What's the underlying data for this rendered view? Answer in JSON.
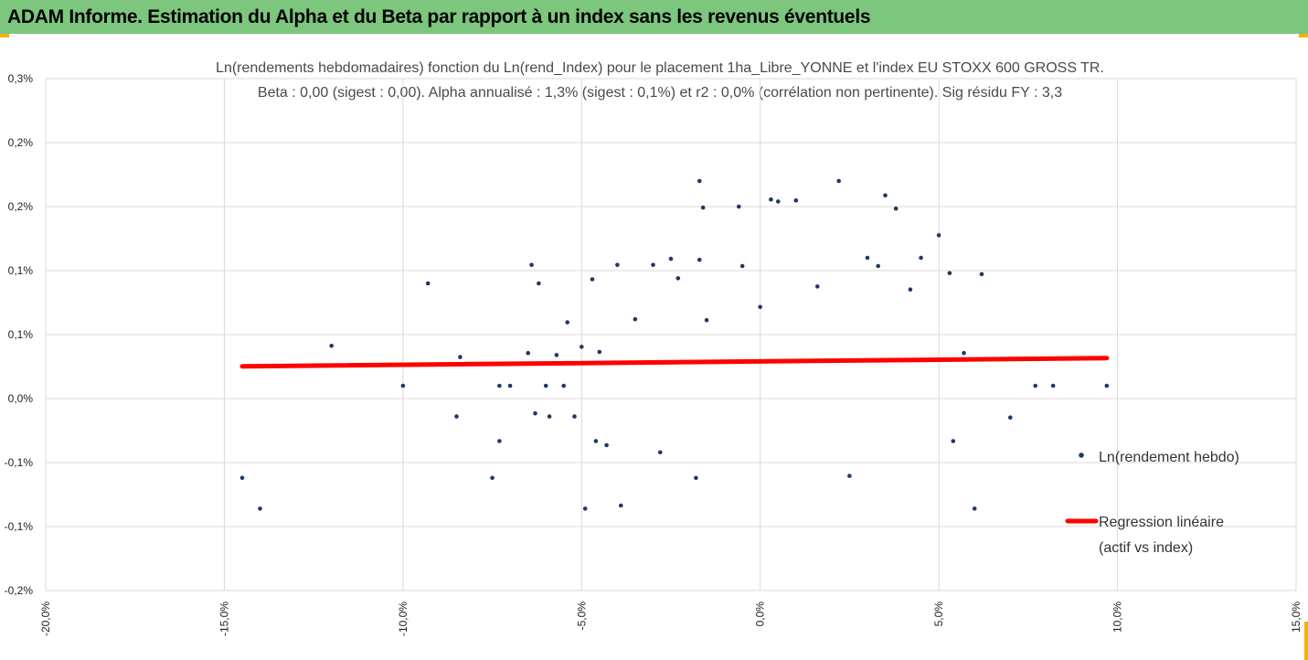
{
  "header": {
    "title": "ADAM Informe. Estimation du Alpha et du Beta par rapport à un index sans les revenus éventuels"
  },
  "colors": {
    "banner": "#7dc67e",
    "points": "#203864",
    "regression": "#ff0000",
    "grid": "#d9d9d9"
  },
  "chart_data": {
    "type": "scatter",
    "title_line1": "Ln(rendements hebdomadaires) fonction du Ln(rend_Index) pour le placement 1ha_Libre_YONNE et l'index EU STOXX 600 GROSS TR.",
    "title_line2": "Beta : 0,00 (sigest : 0,00). Alpha annualisé : 1,3% (sigest : 0,1%) et r2 : 0,0% (corrélation non pertinente). Sig résidu FY : 3,3",
    "xlabel": "",
    "ylabel": "",
    "xlim": [
      -20,
      15
    ],
    "ylim": [
      -0.2,
      0.3
    ],
    "x_ticks": [
      "-20,0%",
      "-15,0%",
      "-10,0%",
      "-5,0%",
      "0,0%",
      "5,0%",
      "10,0%",
      "15,0%"
    ],
    "y_ticks": [
      "0,3%",
      "0,2%",
      "0,2%",
      "0,1%",
      "0,1%",
      "0,0%",
      "-0,1%",
      "-0,1%",
      "-0,2%"
    ],
    "grid": true,
    "legend_position": "right",
    "series": [
      {
        "name": "Ln(rendement hebdo)",
        "type": "scatter",
        "points": [
          [
            -14.5,
            -0.09
          ],
          [
            -14.0,
            -0.12
          ],
          [
            -12.0,
            0.039
          ],
          [
            -10.0,
            0.0
          ],
          [
            -9.3,
            0.1
          ],
          [
            -8.5,
            -0.03
          ],
          [
            -8.4,
            0.028
          ],
          [
            -7.5,
            -0.09
          ],
          [
            -7.3,
            -0.054
          ],
          [
            -7.3,
            0.0
          ],
          [
            -7.0,
            0.0
          ],
          [
            -6.5,
            0.032
          ],
          [
            -6.4,
            0.118
          ],
          [
            -6.3,
            -0.027
          ],
          [
            -6.2,
            0.1
          ],
          [
            -6.0,
            0.0
          ],
          [
            -5.9,
            -0.03
          ],
          [
            -5.7,
            0.03
          ],
          [
            -5.5,
            0.0
          ],
          [
            -5.4,
            0.062
          ],
          [
            -5.2,
            -0.03
          ],
          [
            -5.0,
            0.038
          ],
          [
            -4.9,
            -0.12
          ],
          [
            -4.7,
            0.104
          ],
          [
            -4.6,
            -0.054
          ],
          [
            -4.5,
            0.033
          ],
          [
            -4.3,
            -0.058
          ],
          [
            -4.0,
            0.118
          ],
          [
            -3.9,
            -0.117
          ],
          [
            -3.5,
            0.065
          ],
          [
            -3.0,
            0.118
          ],
          [
            -2.8,
            -0.065
          ],
          [
            -2.5,
            0.124
          ],
          [
            -2.3,
            0.105
          ],
          [
            -1.8,
            -0.09
          ],
          [
            -1.7,
            0.123
          ],
          [
            -1.7,
            0.2
          ],
          [
            -1.6,
            0.174
          ],
          [
            -1.5,
            0.064
          ],
          [
            -0.6,
            0.175
          ],
          [
            -0.5,
            0.117
          ],
          [
            0.0,
            0.077
          ],
          [
            0.3,
            0.182
          ],
          [
            0.5,
            0.18
          ],
          [
            1.0,
            0.181
          ],
          [
            1.6,
            0.097
          ],
          [
            2.2,
            0.2
          ],
          [
            2.5,
            -0.088
          ],
          [
            3.0,
            0.125
          ],
          [
            3.3,
            0.117
          ],
          [
            3.5,
            0.186
          ],
          [
            3.8,
            0.173
          ],
          [
            4.2,
            0.094
          ],
          [
            4.5,
            0.125
          ],
          [
            5.0,
            0.147
          ],
          [
            5.3,
            0.11
          ],
          [
            5.4,
            -0.054
          ],
          [
            5.7,
            0.032
          ],
          [
            6.0,
            -0.12
          ],
          [
            6.2,
            0.109
          ],
          [
            7.0,
            -0.031
          ],
          [
            7.7,
            0.0
          ],
          [
            8.2,
            0.0
          ],
          [
            9.7,
            0.0
          ]
        ]
      },
      {
        "name": "Regression linéaire\n(actif vs index)",
        "type": "line",
        "x": [
          -14.5,
          9.7
        ],
        "y": [
          0.019,
          0.027
        ]
      }
    ]
  }
}
